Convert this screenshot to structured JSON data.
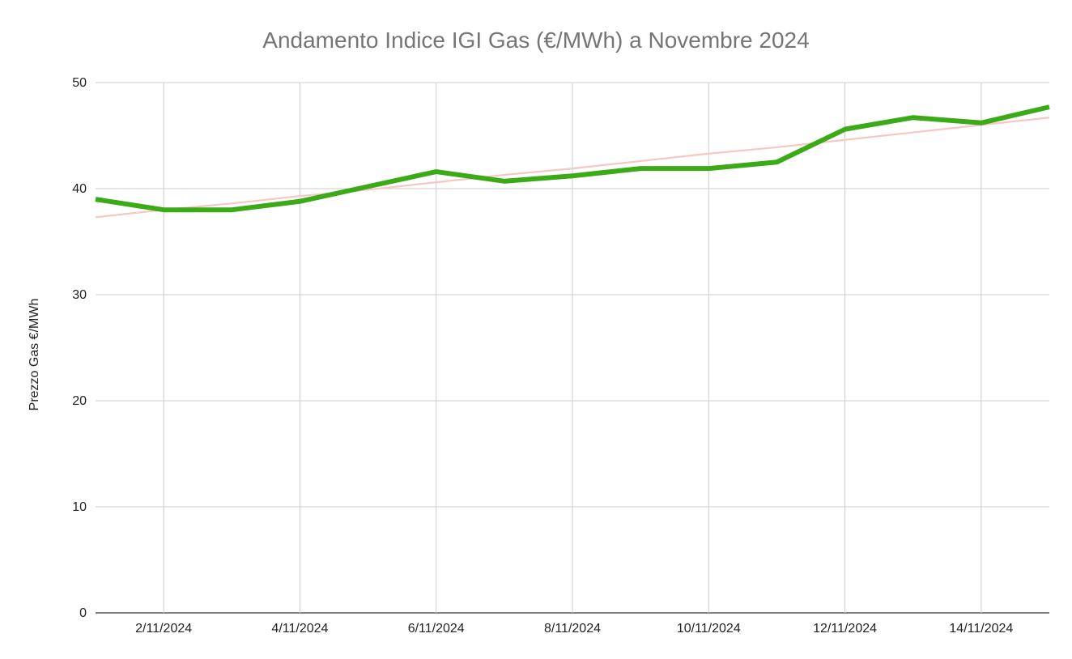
{
  "chart_data": {
    "type": "line",
    "title": "Andamento Indice IGI Gas (€/MWh) a Novembre 2024",
    "xlabel": "",
    "ylabel": "Prezzo Gas €/MWh",
    "x": [
      "1/11/2024",
      "2/11/2024",
      "3/11/2024",
      "4/11/2024",
      "5/11/2024",
      "6/11/2024",
      "7/11/2024",
      "8/11/2024",
      "9/11/2024",
      "10/11/2024",
      "11/11/2024",
      "12/11/2024",
      "13/11/2024",
      "14/11/2024",
      "15/11/2024"
    ],
    "x_tick_labels": [
      "2/11/2024",
      "4/11/2024",
      "6/11/2024",
      "8/11/2024",
      "10/11/2024",
      "12/11/2024",
      "14/11/2024"
    ],
    "ylim": [
      0,
      50
    ],
    "y_ticks": [
      0,
      10,
      20,
      30,
      40,
      50
    ],
    "grid": true,
    "series": [
      {
        "values": [
          39.0,
          38.0,
          38.0,
          38.8,
          40.2,
          41.6,
          40.7,
          41.2,
          41.9,
          41.9,
          42.5,
          45.6,
          46.7,
          46.2,
          47.7
        ],
        "color": "#3aaa16"
      }
    ],
    "trendline": {
      "values": [
        37.3,
        38.0,
        38.6,
        39.3,
        39.9,
        40.6,
        41.3,
        41.9,
        42.6,
        43.3,
        43.9,
        44.6,
        45.3,
        46.0,
        46.7
      ],
      "color": "#f7c7c3"
    }
  }
}
